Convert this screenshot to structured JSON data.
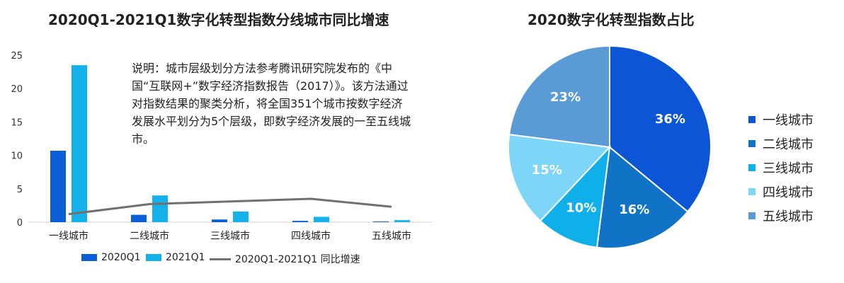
{
  "left_chart_title": "2020Q1-2021Q1数字化转型指数分线城市同比增速",
  "right_chart_title": "2020数字化转型指数占比",
  "note": "说明：城市层级划分方法参考腾讯研究院发布的《中国“互联网+”数字经济指数报告（2017）》。该方法通过对指数结果的聚类分析，将全国351个城市按数字经济发展水平划分为5个层级，即数字经济发展的一至五线城市。",
  "legend": {
    "series1": "2020Q1",
    "series2": "2021Q1",
    "line": "2020Q1-2021Q1 同比增速"
  },
  "chart_data": [
    {
      "type": "bar",
      "title": "2020Q1-2021Q1数字化转型指数分线城市同比增速",
      "categories": [
        "一线城市",
        "二线城市",
        "三线城市",
        "四线城市",
        "五线城市"
      ],
      "series": [
        {
          "name": "2020Q1",
          "type": "bar",
          "color": "#0b5ed8",
          "values": [
            10.7,
            1.1,
            0.4,
            0.2,
            0.1
          ]
        },
        {
          "name": "2021Q1",
          "type": "bar",
          "color": "#14b1ea",
          "values": [
            23.5,
            4.0,
            1.6,
            0.8,
            0.3
          ]
        },
        {
          "name": "2020Q1-2021Q1 同比增速",
          "type": "line",
          "color": "#707070",
          "values": [
            1.2,
            2.7,
            3.1,
            3.5,
            2.3
          ]
        }
      ],
      "yticks": [
        0,
        5,
        10,
        15,
        20,
        25
      ],
      "ylim": [
        0,
        25
      ],
      "grid": false,
      "legend_position": "bottom"
    },
    {
      "type": "pie",
      "title": "2020数字化转型指数占比",
      "labels": [
        "一线城市",
        "二线城市",
        "三线城市",
        "四线城市",
        "五线城市"
      ],
      "values": [
        36,
        16,
        10,
        15,
        23
      ],
      "value_labels": [
        "36%",
        "16%",
        "10%",
        "15%",
        "23%"
      ],
      "colors": [
        "#0b55d6",
        "#1173c6",
        "#0fb0ea",
        "#7dd6f7",
        "#5b9bd5"
      ],
      "legend_position": "right"
    }
  ]
}
